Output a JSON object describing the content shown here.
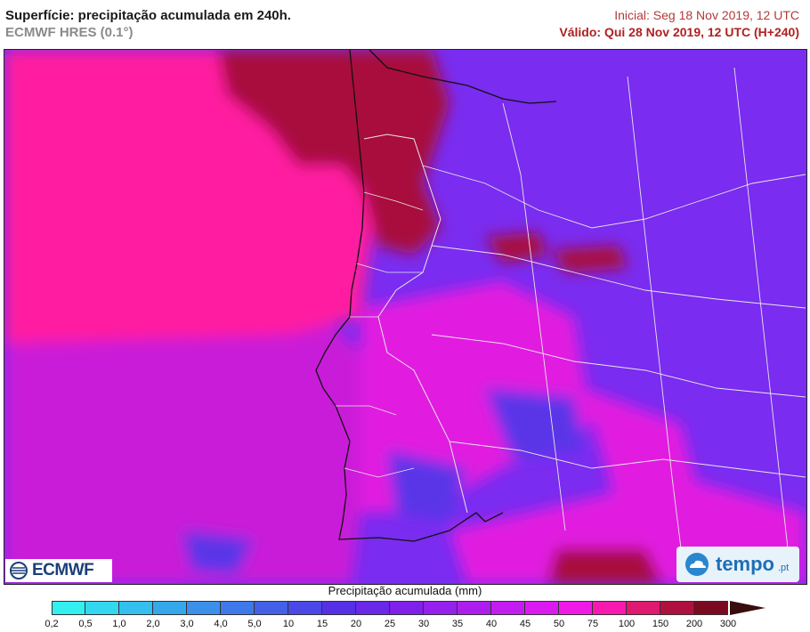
{
  "header": {
    "title": "Superfície: precipitação acumulada em 240h.",
    "subtitle": "ECMWF HRES (0.1°)",
    "initial": "Inicial: Seg 18 Nov 2019, 12 UTC",
    "valid": "Válido: Qui 28 Nov 2019, 12 UTC (H+240)"
  },
  "logos": {
    "left": "ECMWF",
    "right": "tempo",
    "right_suffix": ".pt"
  },
  "legend": {
    "title": "Precipitação acumulada (mm)",
    "ticks": [
      "0,2",
      "0,5",
      "1,0",
      "2,0",
      "3,0",
      "4,0",
      "5,0",
      "10",
      "15",
      "20",
      "25",
      "30",
      "35",
      "40",
      "45",
      "50",
      "75",
      "100",
      "150",
      "200",
      "300"
    ],
    "colors": [
      "#33f0f0",
      "#33d8f0",
      "#33c0ee",
      "#35a8ec",
      "#3a90ea",
      "#3f78e8",
      "#4460e6",
      "#4a48e6",
      "#5530e6",
      "#6a28e8",
      "#8020ea",
      "#9620ec",
      "#ad1eee",
      "#c41cf0",
      "#da1af0",
      "#f01ae8",
      "#f81ab0",
      "#e01870",
      "#b01040",
      "#7a0a20"
    ],
    "arrow_color": "#3a0d0d"
  },
  "map_colors": {
    "background": "#7a2cf0",
    "ocean_west": "#ff1aa0",
    "ocean_mid": "#c91bd8",
    "dark_red": "#a8103c",
    "magenta": "#e11fe0",
    "blue_violet": "#5a34e8"
  }
}
